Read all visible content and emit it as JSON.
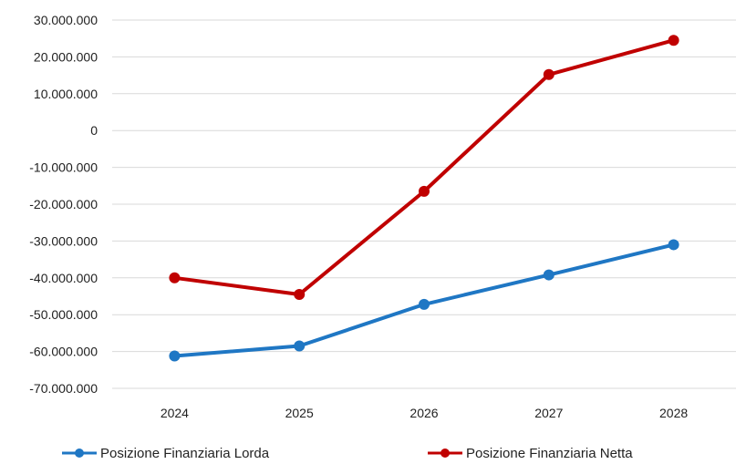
{
  "chart_data": {
    "type": "line",
    "categories": [
      "2024",
      "2025",
      "2026",
      "2027",
      "2028"
    ],
    "series": [
      {
        "name": "Posizione Finanziaria Lorda",
        "color": "#1f77c4",
        "values": [
          -61200000,
          -58500000,
          -47200000,
          -39200000,
          -31000000
        ]
      },
      {
        "name": "Posizione Finanziaria Netta",
        "color": "#c00000",
        "values": [
          -40000000,
          -44500000,
          -16500000,
          15200000,
          24500000
        ]
      }
    ],
    "ylim": [
      -70000000,
      30000000
    ],
    "yticks": [
      30000000,
      20000000,
      10000000,
      0,
      -10000000,
      -20000000,
      -30000000,
      -40000000,
      -50000000,
      -60000000,
      -70000000
    ],
    "ytick_labels": [
      "30.000.000",
      "20.000.000",
      "10.000.000",
      "0",
      "-10.000.000",
      "-20.000.000",
      "-30.000.000",
      "-40.000.000",
      "-50.000.000",
      "-60.000.000",
      "-70.000.000"
    ],
    "grid": true,
    "legend_position": "bottom"
  }
}
